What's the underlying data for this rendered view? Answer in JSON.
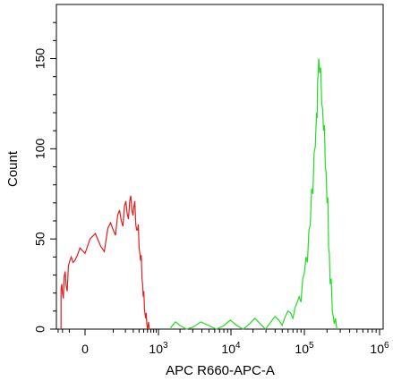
{
  "chart_data": {
    "type": "histogram",
    "title": "",
    "xlabel": "APC R660-APC-A",
    "ylabel": "Count",
    "x_scale": "biexponential",
    "x_ticks": [
      {
        "value": 0,
        "base": "0",
        "exp": ""
      },
      {
        "value": 1000,
        "base": "10",
        "exp": "3"
      },
      {
        "value": 10000,
        "base": "10",
        "exp": "4"
      },
      {
        "value": 100000,
        "base": "10",
        "exp": "5"
      },
      {
        "value": 1000000,
        "base": "10",
        "exp": "6"
      }
    ],
    "y_ticks": [
      0,
      50,
      100,
      150
    ],
    "ylim": [
      0,
      180
    ],
    "grid": false,
    "legend": "none",
    "series": [
      {
        "color": "#e01e1e",
        "points": [
          [
            -230,
            22
          ],
          [
            -200,
            20
          ],
          [
            -170,
            29
          ],
          [
            -140,
            24
          ],
          [
            -110,
            35
          ],
          [
            -80,
            40
          ],
          [
            -50,
            38
          ],
          [
            -20,
            45
          ],
          [
            10,
            50
          ],
          [
            40,
            46
          ],
          [
            70,
            56
          ],
          [
            100,
            55
          ],
          [
            130,
            63
          ],
          [
            160,
            60
          ],
          [
            190,
            68
          ],
          [
            220,
            64
          ],
          [
            250,
            71
          ],
          [
            280,
            66
          ],
          [
            310,
            68
          ],
          [
            340,
            58
          ],
          [
            370,
            55
          ],
          [
            400,
            45
          ],
          [
            430,
            38
          ],
          [
            460,
            28
          ],
          [
            490,
            18
          ],
          [
            520,
            11
          ],
          [
            550,
            6
          ],
          [
            580,
            3
          ],
          [
            610,
            1
          ],
          [
            650,
            0
          ]
        ]
      },
      {
        "color": "#22dd22",
        "points": [
          [
            1500,
            1
          ],
          [
            2000,
            2
          ],
          [
            3000,
            1
          ],
          [
            5000,
            2
          ],
          [
            8000,
            2
          ],
          [
            12000,
            2
          ],
          [
            18000,
            3
          ],
          [
            25000,
            3
          ],
          [
            35000,
            4
          ],
          [
            45000,
            5
          ],
          [
            55000,
            7
          ],
          [
            65000,
            9
          ],
          [
            75000,
            12
          ],
          [
            85000,
            18
          ],
          [
            95000,
            28
          ],
          [
            105000,
            40
          ],
          [
            115000,
            55
          ],
          [
            125000,
            78
          ],
          [
            135000,
            98
          ],
          [
            145000,
            120
          ],
          [
            150000,
            138
          ],
          [
            155000,
            150
          ],
          [
            160000,
            142
          ],
          [
            170000,
            125
          ],
          [
            180000,
            110
          ],
          [
            190000,
            90
          ],
          [
            200000,
            70
          ],
          [
            210000,
            45
          ],
          [
            220000,
            25
          ],
          [
            235000,
            10
          ],
          [
            250000,
            3
          ],
          [
            270000,
            0
          ]
        ]
      }
    ]
  }
}
